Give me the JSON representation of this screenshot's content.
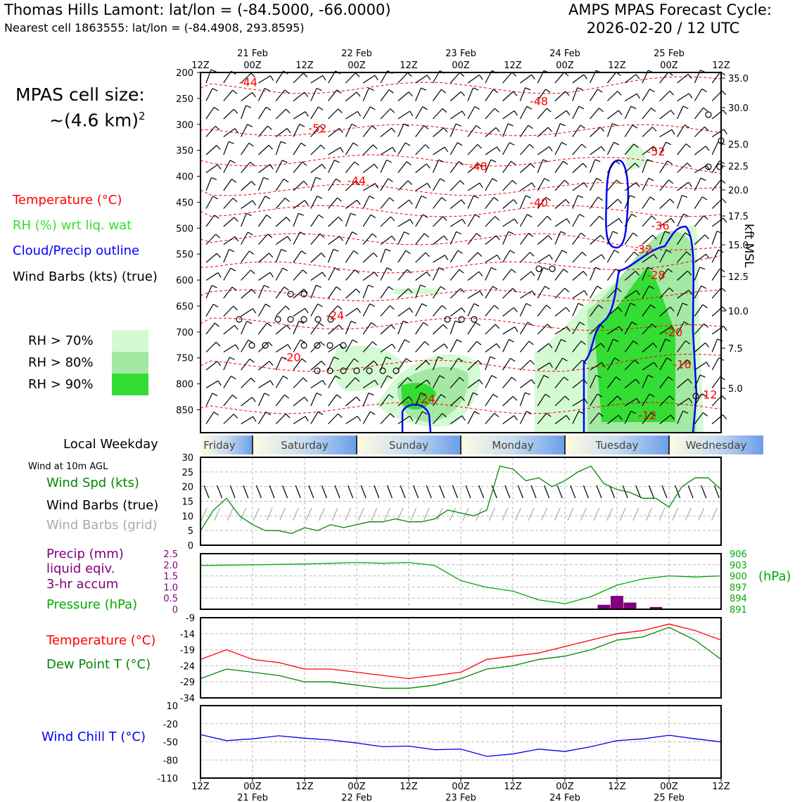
{
  "header": {
    "location_title": "Thomas Hills Lamont: lat/lon = (-84.5000, -66.0000)",
    "nearest_cell": "Nearest cell 1863555: lat/lon = (-84.4908, 293.8595)",
    "forecast_title": "AMPS MPAS Forecast Cycle:",
    "forecast_cycle": "2026-02-20 / 12 UTC"
  },
  "cell_size": {
    "label": "MPAS cell size:",
    "value": "~(4.6 km)",
    "superscript": "2"
  },
  "legend": {
    "temperature": "Temperature (°C)",
    "rh": "RH (%) wrt liq. wat",
    "cloud": "Cloud/Precip outline",
    "wind_barbs": "Wind Barbs (kts) (true)",
    "rh70": "RH > 70%",
    "rh80": "RH > 80%",
    "rh90": "RH > 90%"
  },
  "colors": {
    "temperature": "#ff0000",
    "rh_label": "#33dd33",
    "cloud": "#0000ff",
    "rh70": "#d4fad4",
    "rh80": "#a3e8a3",
    "rh90": "#33dd33",
    "wind_speed": "#008800",
    "precip": "#800080",
    "pressure": "#00aa00",
    "dewpoint": "#008800",
    "windchill": "#0000ee",
    "grid_barbs": "#aaaaaa"
  },
  "time_axis": {
    "ticks": [
      "12Z",
      "00Z",
      "12Z",
      "00Z",
      "12Z",
      "00Z",
      "12Z",
      "00Z",
      "12Z",
      "00Z",
      "12Z"
    ],
    "dates": [
      "21 Feb",
      "22 Feb",
      "23 Feb",
      "24 Feb",
      "25 Feb"
    ]
  },
  "weekday": {
    "label": "Local Weekday",
    "days": [
      "Friday",
      "Saturday",
      "Sunday",
      "Monday",
      "Tuesday",
      "Wednesday"
    ]
  },
  "wind10m": {
    "title": "Wind at 10m AGL",
    "speed_label": "Wind Spd (kts)",
    "barbs_true_label": "Wind Barbs (true)",
    "barbs_grid_label": "Wind Barbs (grid)"
  },
  "precip_panel": {
    "precip_label_1": "Precip (mm)",
    "precip_label_2": "liquid eqiv.",
    "precip_label_3": "3-hr accum",
    "pressure_label": "Pressure (hPa)",
    "hpa_unit": "(hPa)"
  },
  "temp_panel": {
    "temp_label": "Temperature (°C)",
    "dew_label": "Dew Point T (°C)"
  },
  "chill_panel": {
    "label": "Wind Chill T (°C)"
  },
  "chart_data": [
    {
      "type": "heatmap",
      "name": "time-height cross-section",
      "x_unit": "forecast hour",
      "x_range": [
        0,
        120
      ],
      "y_unit": "hPa",
      "pressure_levels": [
        200,
        250,
        300,
        350,
        400,
        450,
        500,
        550,
        600,
        650,
        700,
        750,
        800,
        850
      ],
      "height_kft_ticks": [
        35.0,
        30.0,
        25.0,
        22.5,
        20.0,
        17.5,
        15.0,
        12.5,
        10.0,
        7.5,
        5.0
      ],
      "height_axis_label": "kft MSL",
      "temperature_contour_labels": [
        {
          "text": "-44",
          "t": 11,
          "p": 218
        },
        {
          "text": "-48",
          "t": 78,
          "p": 255
        },
        {
          "text": "-52",
          "t": 27,
          "p": 307
        },
        {
          "text": "-52",
          "t": 105,
          "p": 352
        },
        {
          "text": "-48",
          "t": 64,
          "p": 380
        },
        {
          "text": "-44",
          "t": 36,
          "p": 408
        },
        {
          "text": "-40",
          "t": 78,
          "p": 450
        },
        {
          "text": "-36",
          "t": 106,
          "p": 495
        },
        {
          "text": "-32",
          "t": 102,
          "p": 540
        },
        {
          "text": "-28",
          "t": 105,
          "p": 590
        },
        {
          "text": "-24",
          "t": 31,
          "p": 668
        },
        {
          "text": "-20",
          "t": 21,
          "p": 748
        },
        {
          "text": "-20",
          "t": 109,
          "p": 700
        },
        {
          "text": "-16",
          "t": 111,
          "p": 762
        },
        {
          "text": "-12",
          "t": 117,
          "p": 820
        },
        {
          "text": "-12",
          "t": 103,
          "p": 860
        },
        {
          "text": "-24",
          "t": 52,
          "p": 828
        }
      ]
    },
    {
      "type": "line",
      "name": "10m wind speed",
      "ylim": [
        0,
        30
      ],
      "yticks": [
        0,
        5,
        10,
        15,
        20,
        25,
        30
      ],
      "x": [
        0,
        3,
        6,
        9,
        12,
        15,
        18,
        21,
        24,
        27,
        30,
        33,
        36,
        39,
        42,
        45,
        48,
        51,
        54,
        57,
        60,
        63,
        66,
        69,
        72,
        75,
        78,
        81,
        84,
        87,
        90,
        93,
        96,
        99,
        102,
        105,
        108,
        111,
        114,
        117,
        120
      ],
      "series": [
        {
          "name": "Wind Spd (kts)",
          "values": [
            5,
            12,
            16,
            10,
            7,
            5,
            5,
            4,
            6,
            5,
            7,
            6,
            7,
            8,
            8,
            9,
            8,
            8,
            9,
            12,
            11,
            10,
            12,
            27,
            26,
            22,
            23,
            20,
            22,
            25,
            27,
            21,
            19,
            18,
            16,
            16,
            13,
            20,
            23,
            23,
            19
          ]
        }
      ]
    },
    {
      "type": "bar",
      "name": "precipitation and pressure",
      "precip_ylim": [
        0,
        2.5
      ],
      "precip_yticks": [
        0,
        0.5,
        1.0,
        1.5,
        2.0,
        2.5
      ],
      "pressure_ylim": [
        891,
        906
      ],
      "pressure_yticks": [
        891,
        894,
        897,
        900,
        903,
        906
      ],
      "precip_x": [
        93,
        96,
        99,
        105
      ],
      "precip_values": [
        0.2,
        0.6,
        0.3,
        0.1
      ],
      "pressure_x": [
        0,
        6,
        12,
        18,
        24,
        30,
        36,
        42,
        48,
        54,
        60,
        66,
        72,
        78,
        84,
        90,
        96,
        102,
        108,
        114,
        120
      ],
      "pressure_values": [
        902.8,
        902.9,
        903.0,
        903.1,
        903.2,
        903.4,
        903.6,
        903.4,
        903.6,
        902.8,
        898.7,
        896.9,
        895.9,
        893.5,
        892.5,
        894.4,
        897.5,
        899.2,
        900.0,
        899.7,
        900.0
      ]
    },
    {
      "type": "line",
      "name": "temperature and dew point",
      "ylim": [
        -34,
        -9
      ],
      "yticks": [
        -34,
        -29,
        -24,
        -19,
        -14,
        -9
      ],
      "x": [
        0,
        6,
        12,
        18,
        24,
        30,
        36,
        42,
        48,
        54,
        60,
        66,
        72,
        78,
        84,
        90,
        96,
        102,
        108,
        114,
        120
      ],
      "series": [
        {
          "name": "Temperature (°C)",
          "values": [
            -22,
            -19,
            -22,
            -23,
            -25,
            -25,
            -26,
            -27,
            -28,
            -27,
            -26,
            -22,
            -21,
            -20,
            -18,
            -16,
            -14,
            -13,
            -11,
            -13,
            -16
          ]
        },
        {
          "name": "Dew Point T (°C)",
          "values": [
            -28,
            -25,
            -26,
            -27,
            -29,
            -29,
            -30,
            -31,
            -31,
            -30,
            -28,
            -25,
            -24,
            -22,
            -21,
            -19,
            -16,
            -15,
            -12,
            -16,
            -22
          ]
        }
      ]
    },
    {
      "type": "line",
      "name": "wind chill",
      "ylim": [
        -110,
        10
      ],
      "yticks": [
        -110,
        -80,
        -50,
        -20,
        10
      ],
      "x": [
        0,
        6,
        12,
        18,
        24,
        30,
        36,
        42,
        48,
        54,
        60,
        66,
        72,
        78,
        84,
        90,
        96,
        102,
        108,
        114,
        120
      ],
      "series": [
        {
          "name": "Wind Chill T (°C)",
          "values": [
            -38,
            -48,
            -45,
            -40,
            -44,
            -47,
            -52,
            -58,
            -57,
            -63,
            -62,
            -74,
            -70,
            -62,
            -66,
            -58,
            -48,
            -45,
            -39,
            -45,
            -50
          ]
        }
      ]
    }
  ]
}
